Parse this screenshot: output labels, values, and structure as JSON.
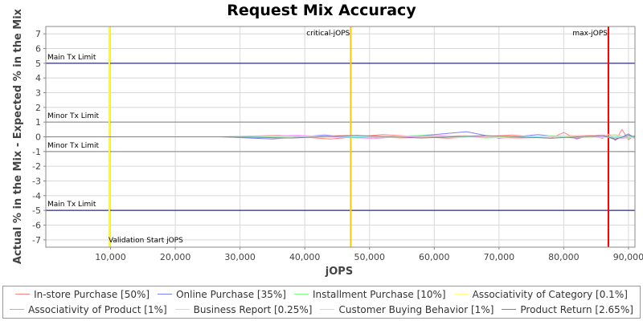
{
  "chart_data": {
    "type": "line",
    "title": "Request Mix Accuracy",
    "xlabel": "jOPS",
    "ylabel": "Actual % in the Mix - Expected % in the Mix",
    "xlim": [
      0,
      91000
    ],
    "ylim": [
      -7.5,
      7.5
    ],
    "x_ticks": [
      "10,000",
      "20,000",
      "30,000",
      "40,000",
      "50,000",
      "60,000",
      "70,000",
      "80,000",
      "90,000"
    ],
    "x_tick_values": [
      10000,
      20000,
      30000,
      40000,
      50000,
      60000,
      70000,
      80000,
      90000
    ],
    "y_ticks": [
      "7",
      "6",
      "5",
      "4",
      "3",
      "2",
      "1",
      "0",
      "-1",
      "-2",
      "-3",
      "-4",
      "-5",
      "-6",
      "-7"
    ],
    "y_tick_values": [
      7,
      6,
      5,
      4,
      3,
      2,
      1,
      0,
      -1,
      -2,
      -3,
      -4,
      -5,
      -6,
      -7
    ],
    "grid": true,
    "legend_position": "bottom",
    "horizontal_markers": [
      {
        "label": "Main Tx Limit",
        "y": 5,
        "color": "#000066"
      },
      {
        "label": "Minor Tx Limit",
        "y": 1,
        "color": "#808080"
      },
      {
        "label": "Minor Tx Limit",
        "y": -1,
        "color": "#808080"
      },
      {
        "label": "Main Tx Limit",
        "y": -5,
        "color": "#000066"
      }
    ],
    "vertical_markers": [
      {
        "label": "Validation Start jOPS",
        "x": 9800,
        "color": "#ffff00"
      },
      {
        "label": "critical-jOPS",
        "x": 47100,
        "color": "#ffc800"
      },
      {
        "label": "max-jOPS",
        "x": 86900,
        "color": "#ff0000"
      }
    ],
    "series": [
      {
        "name": "In-store Purchase [50%]",
        "color": "#ff8080",
        "x": [
          0,
          27000,
          36000,
          44000,
          52000,
          62000,
          72000,
          78000,
          80000,
          82000,
          84000,
          86000,
          87000,
          88000,
          89000,
          90000,
          91000
        ],
        "y": [
          0,
          0,
          0.1,
          -0.15,
          0.15,
          -0.1,
          0.12,
          -0.1,
          0.3,
          -0.15,
          0.1,
          -0.1,
          0.2,
          -0.25,
          0.5,
          -0.2,
          0.1
        ]
      },
      {
        "name": "Online Purchase [35%]",
        "color": "#8080ff",
        "x": [
          0,
          27000,
          35000,
          43000,
          51000,
          60000,
          65000,
          70000,
          76000,
          82000,
          86000,
          88000,
          90000,
          91000
        ],
        "y": [
          0,
          0,
          -0.15,
          0.12,
          -0.1,
          0.15,
          0.35,
          -0.1,
          0.15,
          -0.1,
          0.12,
          -0.2,
          0.2,
          -0.1
        ]
      },
      {
        "name": "Installment Purchase [10%]",
        "color": "#80ff80",
        "x": [
          0,
          28000,
          38000,
          48000,
          58000,
          68000,
          78000,
          86000,
          88000,
          90000,
          91000
        ],
        "y": [
          0,
          0,
          0.08,
          -0.08,
          0.1,
          -0.08,
          0.08,
          -0.05,
          0.1,
          -0.1,
          0.05
        ]
      },
      {
        "name": "Associativity of Category [0.1%]",
        "color": "#ffff80",
        "x": [
          0,
          28000,
          40000,
          52000,
          64000,
          76000,
          88000,
          91000
        ],
        "y": [
          0,
          0,
          -0.05,
          0.05,
          -0.05,
          0.05,
          -0.05,
          0
        ]
      },
      {
        "name": "Associativity of Product [1%]",
        "color": "#ff80ff",
        "x": [
          0,
          28000,
          39000,
          50000,
          61000,
          72000,
          83000,
          89000,
          91000
        ],
        "y": [
          0,
          0,
          0.1,
          -0.1,
          0.08,
          -0.08,
          0.1,
          -0.1,
          0
        ]
      },
      {
        "name": "Business Report [0.25%]",
        "color": "#80ffff",
        "x": [
          0,
          28000,
          42000,
          56000,
          70000,
          84000,
          91000
        ],
        "y": [
          0,
          0,
          0.05,
          -0.05,
          0.05,
          -0.05,
          0
        ]
      },
      {
        "name": "Customer Buying Behavior [1%]",
        "color": "#ffc8c8",
        "x": [
          0,
          28000,
          37000,
          46000,
          55000,
          64000,
          73000,
          82000,
          88000,
          91000
        ],
        "y": [
          0,
          0,
          -0.1,
          0.12,
          -0.1,
          0.1,
          -0.12,
          0.1,
          0.15,
          -0.1
        ]
      },
      {
        "name": "Product Return [2.65%]",
        "color": "#808080",
        "x": [
          0,
          28000,
          38000,
          48000,
          58000,
          68000,
          78000,
          86000,
          88000,
          90000,
          91000
        ],
        "y": [
          0,
          0,
          -0.08,
          0.1,
          -0.08,
          0.08,
          -0.1,
          0.08,
          -0.15,
          0.1,
          0
        ]
      }
    ]
  }
}
